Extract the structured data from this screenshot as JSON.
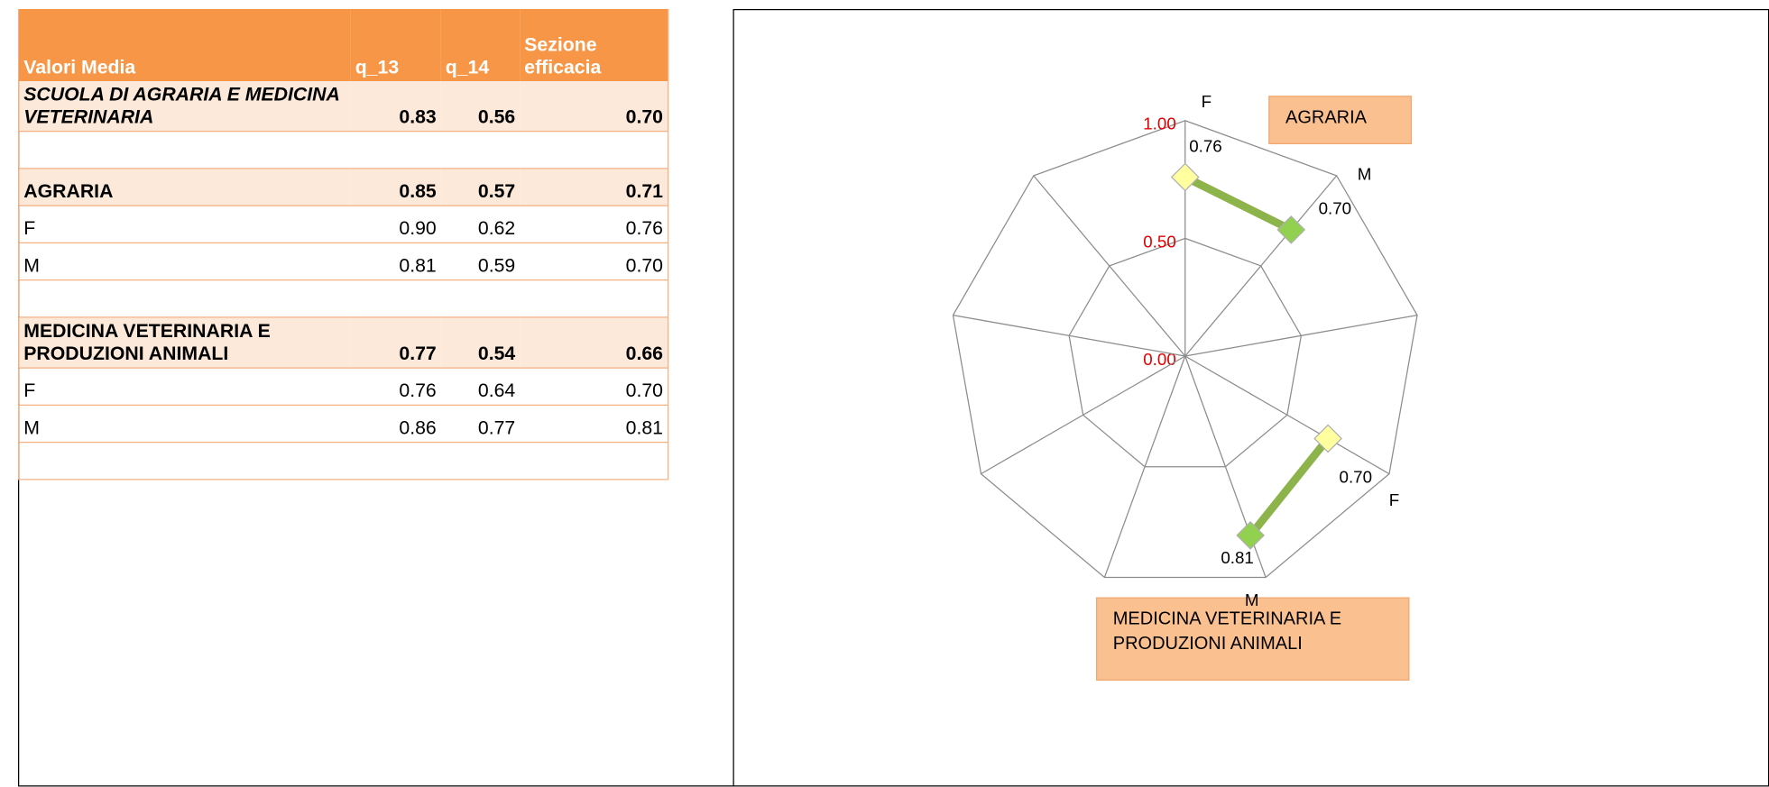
{
  "table": {
    "header": [
      "Valori Media",
      "q_13",
      "q_14",
      "Sezione efficacia"
    ],
    "rows": [
      [
        "SCUOLA DI AGRARIA E MEDICINA VETERINARIA",
        "0.83",
        "0.56",
        "0.70"
      ],
      [
        "AGRARIA",
        "0.85",
        "0.57",
        "0.71"
      ],
      [
        "F",
        "0.90",
        "0.62",
        "0.76"
      ],
      [
        "M",
        "0.81",
        "0.59",
        "0.70"
      ],
      [
        "MEDICINA VETERINARIA E PRODUZIONI ANIMALI",
        "0.77",
        "0.54",
        "0.66"
      ],
      [
        "F",
        "0.76",
        "0.64",
        "0.70"
      ],
      [
        "M",
        "0.86",
        "0.77",
        "0.81"
      ]
    ]
  },
  "chart_data": {
    "type": "radar",
    "categories": [
      "F",
      "M",
      null,
      "F",
      "M",
      null,
      null,
      null,
      null
    ],
    "ylim": [
      0,
      1
    ],
    "yticks": [
      {
        "value": 0,
        "label": "0.00"
      },
      {
        "value": 0.5,
        "label": "0.50"
      },
      {
        "value": 1,
        "label": "1.00"
      }
    ],
    "tick_color": "#e00000",
    "series": [
      {
        "name": "AGRARIA",
        "color": "#8db34b",
        "marker_colors": [
          "#ffffa0",
          "#92d050",
          null,
          null,
          null,
          null,
          null,
          null,
          null
        ],
        "values": [
          0.76,
          0.7,
          null,
          null,
          null,
          null,
          null,
          null,
          null
        ],
        "value_labels": [
          "0.76",
          "0.70",
          null,
          null,
          null,
          null,
          null,
          null,
          null
        ]
      },
      {
        "name": "MEDICINA VETERINARIA E PRODUZIONI ANIMALI",
        "color": "#8db34b",
        "marker_colors": [
          null,
          null,
          null,
          "#ffffa0",
          "#92d050",
          null,
          null,
          null,
          null
        ],
        "values": [
          null,
          null,
          null,
          0.7,
          0.81,
          null,
          null,
          null,
          null
        ],
        "value_labels": [
          null,
          null,
          null,
          "0.70",
          "0.81",
          null,
          null,
          null,
          null
        ]
      }
    ]
  }
}
